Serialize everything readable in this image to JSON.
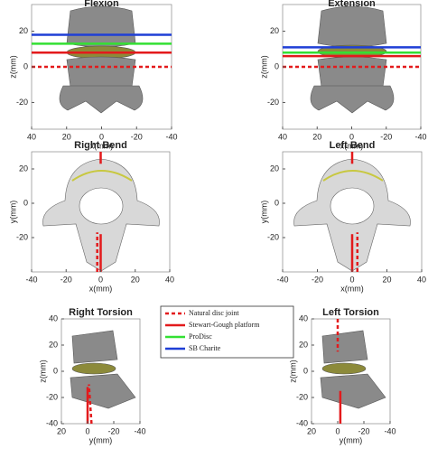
{
  "chart_data": [
    {
      "type": "line",
      "title": "Flexion",
      "xlabel": "x(mm)",
      "ylabel": "z(mm)",
      "xlim": [
        40,
        -40
      ],
      "ylim": [
        -35,
        35
      ],
      "xticks": [
        40,
        20,
        0,
        -20,
        -40
      ],
      "yticks": [
        20,
        0,
        -20
      ],
      "series": [
        {
          "name": "Natural disc joint",
          "color": "#e31a1c",
          "dash": true,
          "x": [
            40,
            -40
          ],
          "values": [
            0,
            0
          ]
        },
        {
          "name": "Stewart-Gough platform",
          "color": "#e31a1c",
          "dash": false,
          "x": [
            40,
            -40
          ],
          "values": [
            8,
            8
          ]
        },
        {
          "name": "ProDisc",
          "color": "#33e033",
          "dash": false,
          "x": [
            40,
            -40
          ],
          "values": [
            13,
            13
          ]
        },
        {
          "name": "SB Charite",
          "color": "#1f3fd6",
          "dash": false,
          "x": [
            40,
            -40
          ],
          "values": [
            18,
            18
          ]
        }
      ]
    },
    {
      "type": "line",
      "title": "Extension",
      "xlabel": "x(mm)",
      "ylabel": "z(mm)",
      "xlim": [
        40,
        -40
      ],
      "ylim": [
        -35,
        35
      ],
      "xticks": [
        40,
        20,
        0,
        -20,
        -40
      ],
      "yticks": [
        20,
        0,
        -20
      ],
      "series": [
        {
          "color": "#e31a1c",
          "dash": true,
          "x": [
            40,
            -40
          ],
          "values": [
            0,
            0
          ]
        },
        {
          "color": "#e31a1c",
          "dash": false,
          "x": [
            40,
            -40
          ],
          "values": [
            6,
            6
          ]
        },
        {
          "color": "#33e033",
          "dash": false,
          "x": [
            40,
            -40
          ],
          "values": [
            8,
            8
          ]
        },
        {
          "color": "#1f3fd6",
          "dash": false,
          "x": [
            40,
            -40
          ],
          "values": [
            11,
            11
          ]
        }
      ]
    },
    {
      "type": "line",
      "title": "Right Bend",
      "xlabel": "x(mm)",
      "ylabel": "y(mm)",
      "xlim": [
        -40,
        40
      ],
      "ylim": [
        -40,
        30
      ],
      "xticks": [
        -40,
        -20,
        0,
        20,
        40
      ],
      "yticks": [
        20,
        0,
        -20
      ],
      "series": [
        {
          "color": "#e31a1c",
          "dash": true,
          "x": [
            -2,
            -2
          ],
          "values": [
            -40,
            -17
          ]
        },
        {
          "color": "#e31a1c",
          "dash": false,
          "x": [
            0,
            0
          ],
          "values": [
            -40,
            -18
          ]
        },
        {
          "color": "#e31a1c",
          "dash": false,
          "x": [
            0,
            0
          ],
          "values": [
            30,
            23
          ]
        }
      ]
    },
    {
      "type": "line",
      "title": "Left Bend",
      "xlabel": "x(mm)",
      "ylabel": "y(mm)",
      "xlim": [
        -40,
        40
      ],
      "ylim": [
        -40,
        30
      ],
      "xticks": [
        -40,
        -20,
        0,
        20,
        40
      ],
      "yticks": [
        20,
        0,
        -20
      ],
      "series": [
        {
          "color": "#e31a1c",
          "dash": true,
          "x": [
            3,
            3
          ],
          "values": [
            -40,
            -17
          ]
        },
        {
          "color": "#e31a1c",
          "dash": false,
          "x": [
            0,
            0
          ],
          "values": [
            -40,
            -18
          ]
        },
        {
          "color": "#e31a1c",
          "dash": false,
          "x": [
            0,
            0
          ],
          "values": [
            30,
            23
          ]
        }
      ]
    },
    {
      "type": "line",
      "title": "Right Torsion",
      "xlabel": "y(mm)",
      "ylabel": "z(mm)",
      "xlim": [
        20,
        -40
      ],
      "ylim": [
        -40,
        40
      ],
      "xticks": [
        20,
        0,
        -20,
        -40
      ],
      "yticks": [
        40,
        20,
        0,
        -20,
        -40
      ],
      "series": [
        {
          "color": "#e31a1c",
          "dash": true,
          "x": [
            -3,
            -1
          ],
          "values": [
            -40,
            -10
          ]
        },
        {
          "color": "#e31a1c",
          "dash": false,
          "x": [
            0,
            0
          ],
          "values": [
            -40,
            -12
          ]
        }
      ]
    },
    {
      "type": "line",
      "title": "Left Torsion",
      "xlabel": "y(mm)",
      "ylabel": "z(mm)",
      "xlim": [
        20,
        -40
      ],
      "ylim": [
        -40,
        40
      ],
      "xticks": [
        20,
        0,
        -20,
        -40
      ],
      "yticks": [
        40,
        20,
        0,
        -20,
        -40
      ],
      "series": [
        {
          "color": "#e31a1c",
          "dash": true,
          "x": [
            0,
            0
          ],
          "values": [
            40,
            15
          ]
        },
        {
          "color": "#e31a1c",
          "dash": false,
          "x": [
            -2,
            -2
          ],
          "values": [
            -40,
            -15
          ]
        }
      ]
    }
  ]
}
